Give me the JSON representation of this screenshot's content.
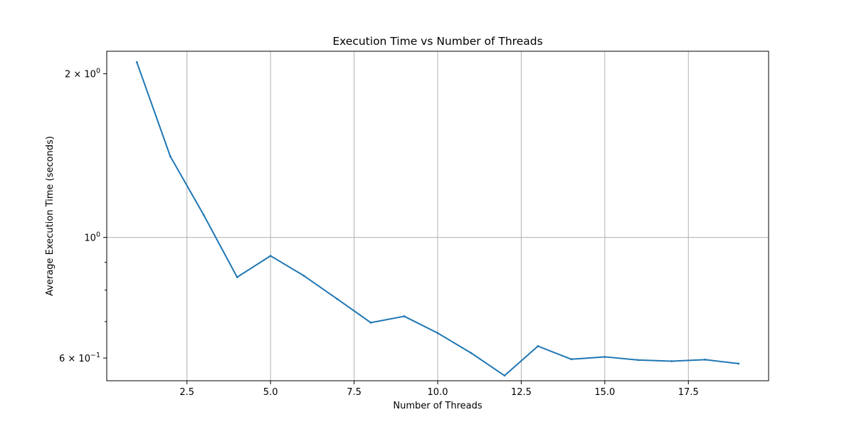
{
  "chart_data": {
    "type": "line",
    "title": "Execution Time vs Number of Threads",
    "xlabel": "Number of Threads",
    "ylabel": "Average Execution Time (seconds)",
    "x_scale": "linear",
    "y_scale": "log",
    "xlim": [
      0.1,
      19.9
    ],
    "ylim": [
      0.545,
      2.2
    ],
    "grid": true,
    "x_ticks": [
      {
        "value": 2.5,
        "label": "2.5"
      },
      {
        "value": 5.0,
        "label": "5.0"
      },
      {
        "value": 7.5,
        "label": "7.5"
      },
      {
        "value": 10.0,
        "label": "10.0"
      },
      {
        "value": 12.5,
        "label": "12.5"
      },
      {
        "value": 15.0,
        "label": "15.0"
      },
      {
        "value": 17.5,
        "label": "17.5"
      }
    ],
    "y_major_ticks": [
      {
        "value": 1.0,
        "label_base": "10",
        "label_exp": "0",
        "label_coef": ""
      },
      {
        "value": 2.0,
        "label_base": "10",
        "label_exp": "0",
        "label_coef": "2 × "
      },
      {
        "value": 0.6,
        "label_base": "10",
        "label_exp": "−1",
        "label_coef": "6 × "
      }
    ],
    "y_grid_values": [
      1.0
    ],
    "y_minor_ticks": [
      0.7,
      0.8,
      0.9
    ],
    "series": [
      {
        "color": "#1f77b4",
        "x": [
          1,
          2,
          3,
          4,
          5,
          6,
          7,
          8,
          9,
          10,
          11,
          12,
          13,
          14,
          15,
          16,
          17,
          18,
          19
        ],
        "y": [
          2.1,
          1.41,
          1.1,
          0.845,
          0.925,
          0.85,
          0.77,
          0.697,
          0.716,
          0.667,
          0.613,
          0.557,
          0.631,
          0.597,
          0.603,
          0.595,
          0.592,
          0.596,
          0.586
        ]
      }
    ]
  }
}
